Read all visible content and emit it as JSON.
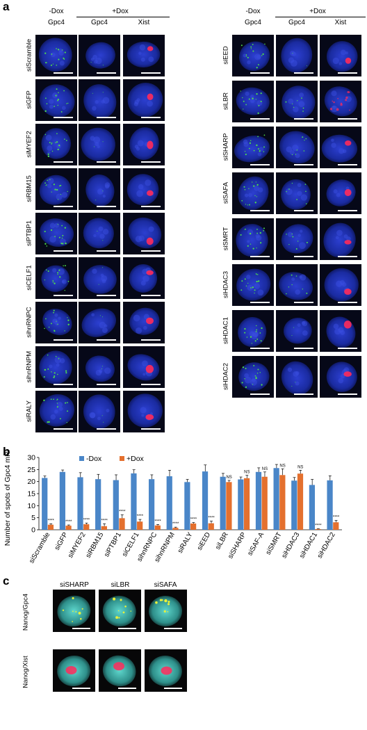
{
  "panel_a": {
    "letter": "a",
    "left_block": {
      "cond_minus": "-Dox",
      "cond_plus": "+Dox",
      "col1": "Gpc4",
      "col2": "Gpc4",
      "col3": "Xist",
      "rows": [
        "siScramble",
        "siGFP",
        "siMYEF2",
        "siRBM15",
        "siPTBP1",
        "siCELF1",
        "sihnRNPC",
        "sihnRNPM",
        "siRALY"
      ]
    },
    "right_block": {
      "cond_minus": "-Dox",
      "cond_plus": "+Dox",
      "col1": "Gpc4",
      "col2": "Gpc4",
      "col3": "Xist",
      "rows": [
        "siEED",
        "siLBR",
        "siSHARP",
        "siSAFA",
        "siSMRT",
        "siHDAC3",
        "siHDAC1",
        "siHDAC2"
      ]
    }
  },
  "panel_b": {
    "letter": "b"
  },
  "panel_c": {
    "letter": "c",
    "cols": [
      "siSHARP",
      "siLBR",
      "siSAFA"
    ],
    "rows": [
      "Nanog/Gpc4",
      "Nanog/Xist"
    ]
  },
  "colors": {
    "minus_dox": "#4a86c8",
    "plus_dox": "#e4702e",
    "nucleus": "#1b2fa8",
    "xist": "#ff2a5a",
    "gpc4": "#4fe04a"
  },
  "chart_data": {
    "type": "bar",
    "ylabel": "Number of spots of Gpc4 mRNA",
    "ylim": [
      0,
      30
    ],
    "yticks": [
      0,
      5,
      10,
      15,
      20,
      25,
      30
    ],
    "legend_position": "top-left",
    "categories": [
      "siScramble",
      "siGFP",
      "siMYEF2",
      "siRBM15",
      "siPTBP1",
      "siCELF1",
      "sihnRNPC",
      "sihnRNPM",
      "siRALY",
      "siEED",
      "siLBR",
      "siSHARP",
      "siSAF-A",
      "siSMRT",
      "siHDAC3",
      "siHDAC1",
      "siHDAC2"
    ],
    "series": [
      {
        "name": "-Dox",
        "color": "#4a86c8",
        "values": [
          21.5,
          24.0,
          21.8,
          21.0,
          20.6,
          23.4,
          21.0,
          22.2,
          19.8,
          24.2,
          22.0,
          20.9,
          24.0,
          25.6,
          20.4,
          18.6,
          20.5
        ],
        "errors": [
          0.8,
          0.8,
          1.9,
          2.0,
          2.2,
          1.5,
          1.8,
          2.5,
          1.1,
          2.7,
          1.4,
          1.0,
          1.7,
          1.5,
          1.3,
          2.3,
          1.9
        ]
      },
      {
        "name": "+Dox",
        "color": "#e4702e",
        "values": [
          2.1,
          1.7,
          2.3,
          1.5,
          4.8,
          3.4,
          1.8,
          0.8,
          2.6,
          2.7,
          19.8,
          21.4,
          22.0,
          22.7,
          23.3,
          0.3,
          3.1
        ],
        "errors": [
          0.4,
          0.3,
          0.5,
          1.0,
          1.4,
          0.9,
          0.4,
          0.3,
          0.4,
          0.9,
          0.7,
          1.2,
          2.0,
          2.6,
          1.4,
          0.1,
          0.8
        ]
      }
    ],
    "annotations": [
      "****",
      "****",
      "****",
      "****",
      "****",
      "****",
      "****",
      "****",
      "****",
      "****",
      "NS",
      "NS",
      "NS",
      "NS",
      "NS",
      "****",
      "****"
    ]
  }
}
